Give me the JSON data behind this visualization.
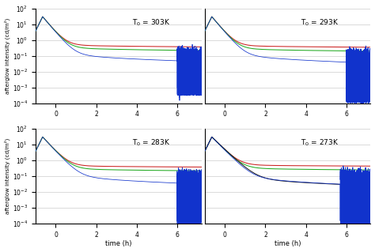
{
  "titles": [
    "T$_0$ = 303K",
    "T$_0$ = 293K",
    "T$_0$ = 283K",
    "T$_0$ = 273K"
  ],
  "ylabel": "afterglow intensity (cd/m²)",
  "xlabel": "time (h)",
  "xlim": [
    -1.0,
    7.2
  ],
  "ylim_log": [
    -4,
    2
  ],
  "colors": {
    "black": "#111111",
    "red": "#cc2222",
    "green": "#22aa22",
    "blue": "#1133cc"
  },
  "bg_color": "#ffffff",
  "grid_color": "#cccccc",
  "subplots": [
    {
      "has_black": false,
      "blue_decay1": 3.5,
      "blue_decay2": 0.8,
      "red_decay2": 0.18,
      "red_A": 0.55,
      "green_decay2": 0.28,
      "green_A": 0.4,
      "noise_start": 6.0,
      "noise_amp": 3.0,
      "blue_floor": 0.0003
    },
    {
      "has_black": false,
      "blue_decay1": 3.5,
      "blue_decay2": 0.9,
      "red_decay2": 0.16,
      "red_A": 0.5,
      "green_decay2": 0.26,
      "green_A": 0.35,
      "noise_start": 6.0,
      "noise_amp": 3.0,
      "blue_floor": 0.0001
    },
    {
      "has_black": false,
      "blue_decay1": 3.2,
      "blue_decay2": 0.95,
      "red_decay2": 0.13,
      "red_A": 0.5,
      "green_decay2": 0.22,
      "green_A": 0.35,
      "noise_start": 6.0,
      "noise_amp": 3.0,
      "blue_floor": 8e-05
    },
    {
      "has_black": true,
      "blue_decay1": 3.0,
      "blue_decay2": 1.05,
      "black_decay1": 2.8,
      "black_decay2": 0.95,
      "red_decay2": 0.11,
      "red_A": 0.55,
      "green_decay2": 0.2,
      "green_A": 0.38,
      "noise_start": 5.7,
      "noise_amp": 4.0,
      "blue_floor": 6e-05
    }
  ]
}
